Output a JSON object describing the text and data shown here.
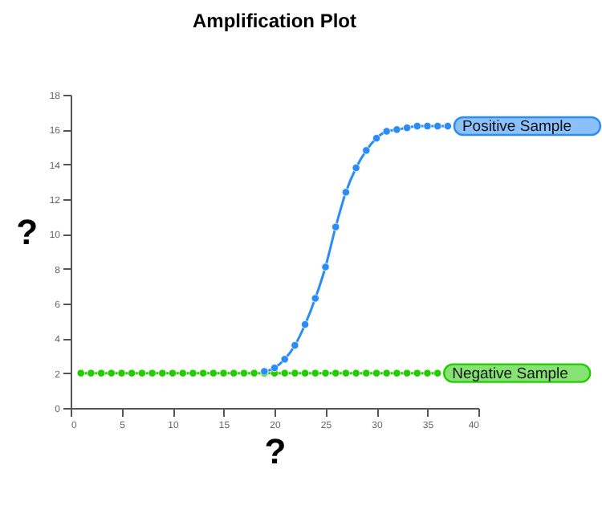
{
  "chart_data": {
    "type": "line",
    "title": "Amplification Plot",
    "xlabel": "?",
    "ylabel": "?",
    "xlim": [
      0,
      40
    ],
    "xticks": [
      0,
      5,
      10,
      15,
      20,
      25,
      30,
      35,
      40
    ],
    "ylim": [
      0,
      18
    ],
    "yticks": [
      0,
      2,
      4,
      6,
      8,
      10,
      12,
      14,
      16,
      18
    ],
    "grid": false,
    "marker": "circle",
    "line_style": "solid",
    "series": [
      {
        "name": "Positive Sample",
        "color": "#2b8cf5",
        "x": [
          19,
          20,
          21,
          22,
          23,
          24,
          25,
          26,
          27,
          28,
          29,
          30,
          31,
          32,
          33,
          34,
          35,
          36,
          37
        ],
        "values": [
          2.1,
          2.3,
          2.8,
          3.6,
          4.8,
          6.3,
          8.1,
          10.4,
          12.4,
          13.8,
          14.8,
          15.5,
          15.9,
          16,
          16.1,
          16.2,
          16.2,
          16.2,
          16.2
        ]
      },
      {
        "name": "Negative Sample",
        "color": "#22cc00",
        "x": [
          1,
          2,
          3,
          4,
          5,
          6,
          7,
          8,
          9,
          10,
          11,
          12,
          13,
          14,
          15,
          16,
          17,
          18,
          19,
          20,
          21,
          22,
          23,
          24,
          25,
          26,
          27,
          28,
          29,
          30,
          31,
          32,
          33,
          34,
          35,
          36
        ],
        "values": [
          2,
          2,
          2,
          2,
          2,
          2,
          2,
          2,
          2,
          2,
          2,
          2,
          2,
          2,
          2,
          2,
          2,
          2,
          2,
          2,
          2,
          2,
          2,
          2,
          2,
          2,
          2,
          2,
          2,
          2,
          2,
          2,
          2,
          2,
          2,
          2
        ]
      }
    ]
  }
}
